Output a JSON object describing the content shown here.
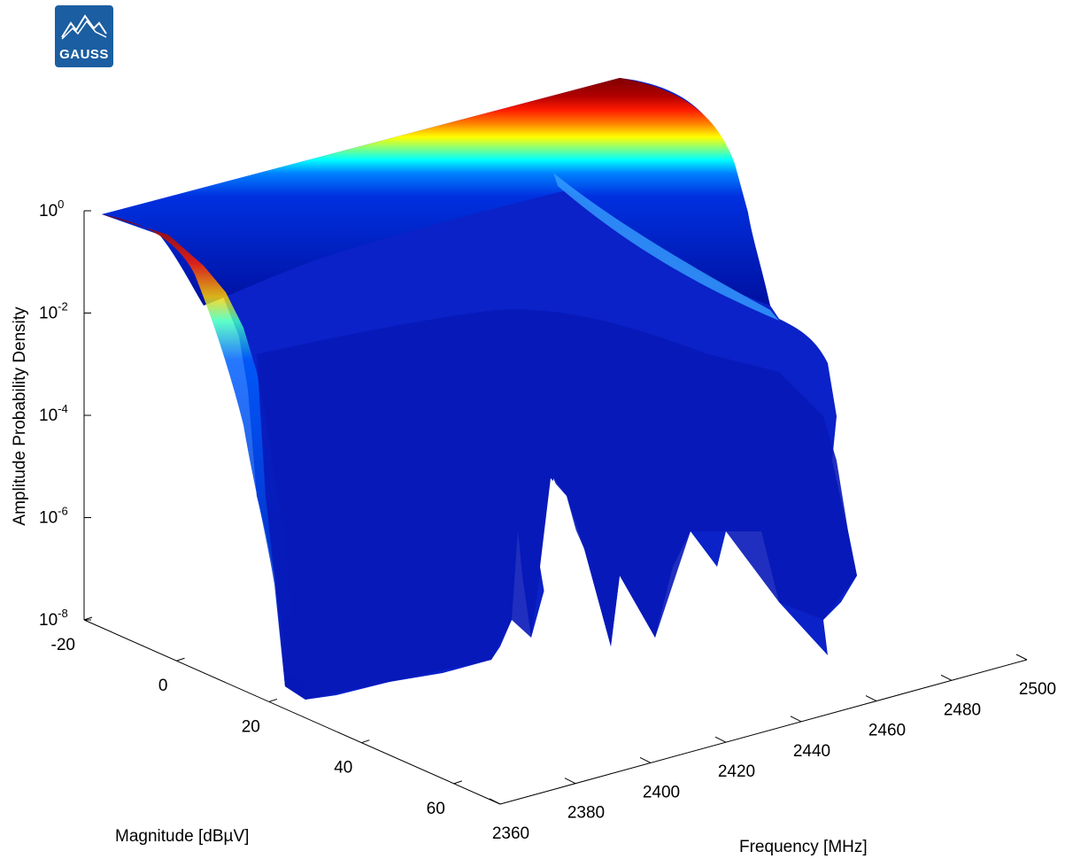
{
  "logo": {
    "text": "GAUSS"
  },
  "chart_data": {
    "type": "surface",
    "title": "",
    "xlabel": "Frequency [MHz]",
    "ylabel": "Magnitude [dBµV]",
    "zlabel": "Amplitude Probability Density",
    "xlim": [
      2360,
      2500
    ],
    "ylim": [
      -20,
      70
    ],
    "zlim": [
      1e-08,
      1
    ],
    "z_scale": "log",
    "colormap": "jet",
    "frequency_ticks": [
      "2360",
      "2380",
      "2400",
      "2420",
      "2440",
      "2460",
      "2480",
      "2500"
    ],
    "magnitude_ticks": [
      "-20",
      "0",
      "20",
      "40",
      "60"
    ],
    "density_ticks": [
      {
        "base": "10",
        "exp": "0"
      },
      {
        "base": "10",
        "exp": "-2"
      },
      {
        "base": "10",
        "exp": "-4"
      },
      {
        "base": "10",
        "exp": "-6"
      },
      {
        "base": "10",
        "exp": "-8"
      }
    ],
    "surface_profile": {
      "description_values_at_low_frequency_edge": {
        "magnitude": [
          -20,
          -10,
          0,
          5,
          10,
          15,
          20,
          25,
          30,
          35,
          40
        ],
        "density": [
          1,
          0.9,
          0.1,
          0.01,
          0.001,
          0.0001,
          1e-05,
          1e-06,
          1e-07,
          5e-08,
          1e-08
        ]
      }
    }
  }
}
